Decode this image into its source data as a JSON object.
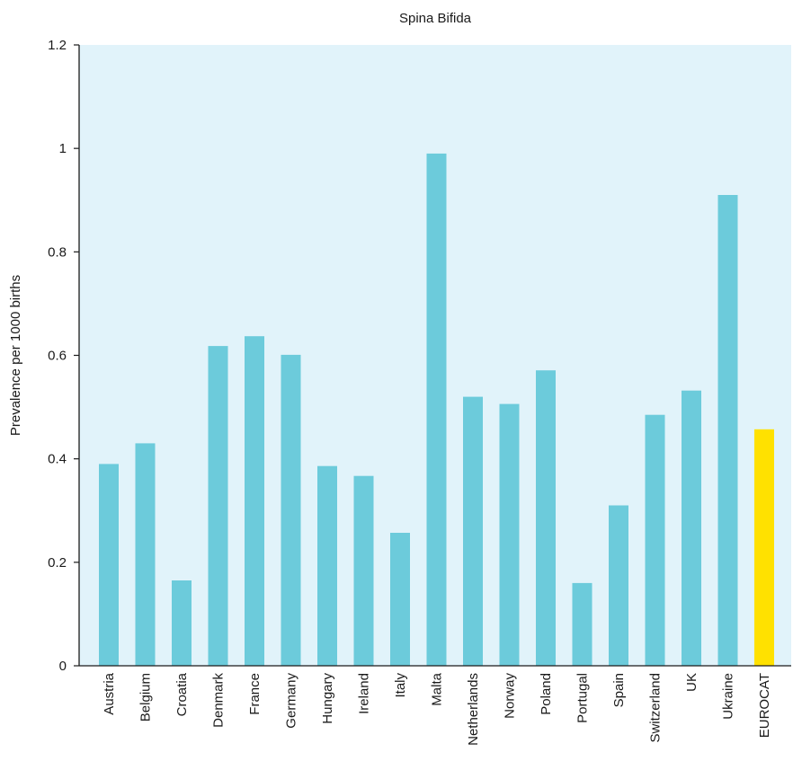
{
  "chart_data": {
    "type": "bar",
    "title": "Spina Bifida",
    "xlabel": "",
    "ylabel": "Prevalence per 1000 births",
    "ylim": [
      0,
      1.2
    ],
    "yticks": [
      "0",
      "0.2",
      "0.4",
      "0.6",
      "0.8",
      "1",
      "1.2"
    ],
    "ytick_values": [
      0,
      0.2,
      0.4,
      0.6,
      0.8,
      1.0,
      1.2
    ],
    "grid": false,
    "categories": [
      "Austria",
      "Belgium",
      "Croatia",
      "Denmark",
      "France",
      "Germany",
      "Hungary",
      "Ireland",
      "Italy",
      "Malta",
      "Netherlands",
      "Norway",
      "Poland",
      "Portugal",
      "Spain",
      "Switzerland",
      "UK",
      "Ukraine",
      "EUROCAT"
    ],
    "values": [
      0.39,
      0.43,
      0.165,
      0.618,
      0.637,
      0.601,
      0.386,
      0.367,
      0.257,
      0.99,
      0.52,
      0.506,
      0.571,
      0.16,
      0.31,
      0.485,
      0.532,
      0.91,
      0.457
    ],
    "highlight_category": "EUROCAT",
    "colors": {
      "bar": "#6ccbdb",
      "highlight": "#ffe100",
      "plot_background": "#e1f3fa",
      "axis": "#1a1a1a"
    }
  }
}
